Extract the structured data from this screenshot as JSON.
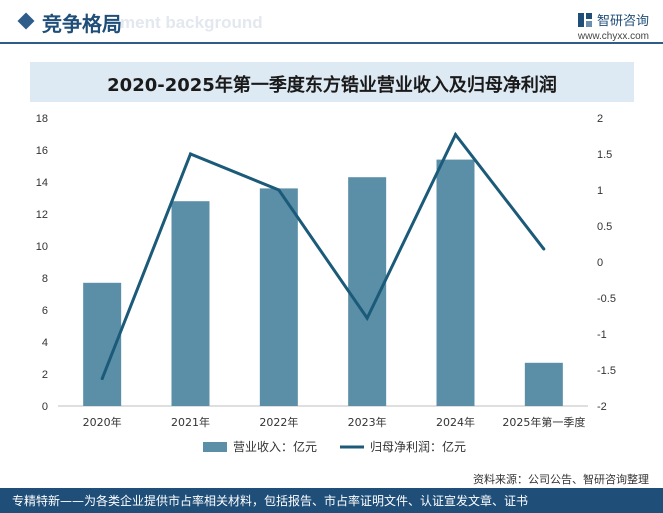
{
  "header": {
    "section_title": "竞争格局",
    "ghost_text": "ment background",
    "brand_name": "智研咨询",
    "brand_url": "www.chyxx.com"
  },
  "chart_data": {
    "type": "bar+line",
    "title": "2020-2025年第一季度东方锆业营业收入及归母净利润",
    "categories": [
      "2020年",
      "2021年",
      "2022年",
      "2023年",
      "2024年",
      "2025年第一季度"
    ],
    "series": [
      {
        "name": "营业收入：亿元",
        "type": "bar",
        "axis": "left",
        "color": "#5b8fa8",
        "values": [
          7.7,
          12.8,
          13.6,
          14.3,
          15.4,
          2.7
        ]
      },
      {
        "name": "归母净利润：亿元",
        "type": "line",
        "axis": "right",
        "color": "#1b5a78",
        "values": [
          -1.62,
          1.5,
          1.0,
          -0.78,
          1.77,
          0.18
        ]
      }
    ],
    "left_axis": {
      "min": 0,
      "max": 18,
      "ticks": [
        "0",
        "2",
        "4",
        "6",
        "8",
        "10",
        "12",
        "14",
        "16",
        "18"
      ]
    },
    "right_axis": {
      "min": -2,
      "max": 2,
      "ticks": [
        "-2",
        "-1.5",
        "-1",
        "-0.5",
        "0",
        "0.5",
        "1",
        "1.5",
        "2"
      ]
    },
    "legend_position": "bottom"
  },
  "source": "资料来源：公司公告、智研咨询整理",
  "footer": "专精特新——为各类企业提供市占率相关材料，包括报告、市占率证明文件、认证宣发文章、证书"
}
